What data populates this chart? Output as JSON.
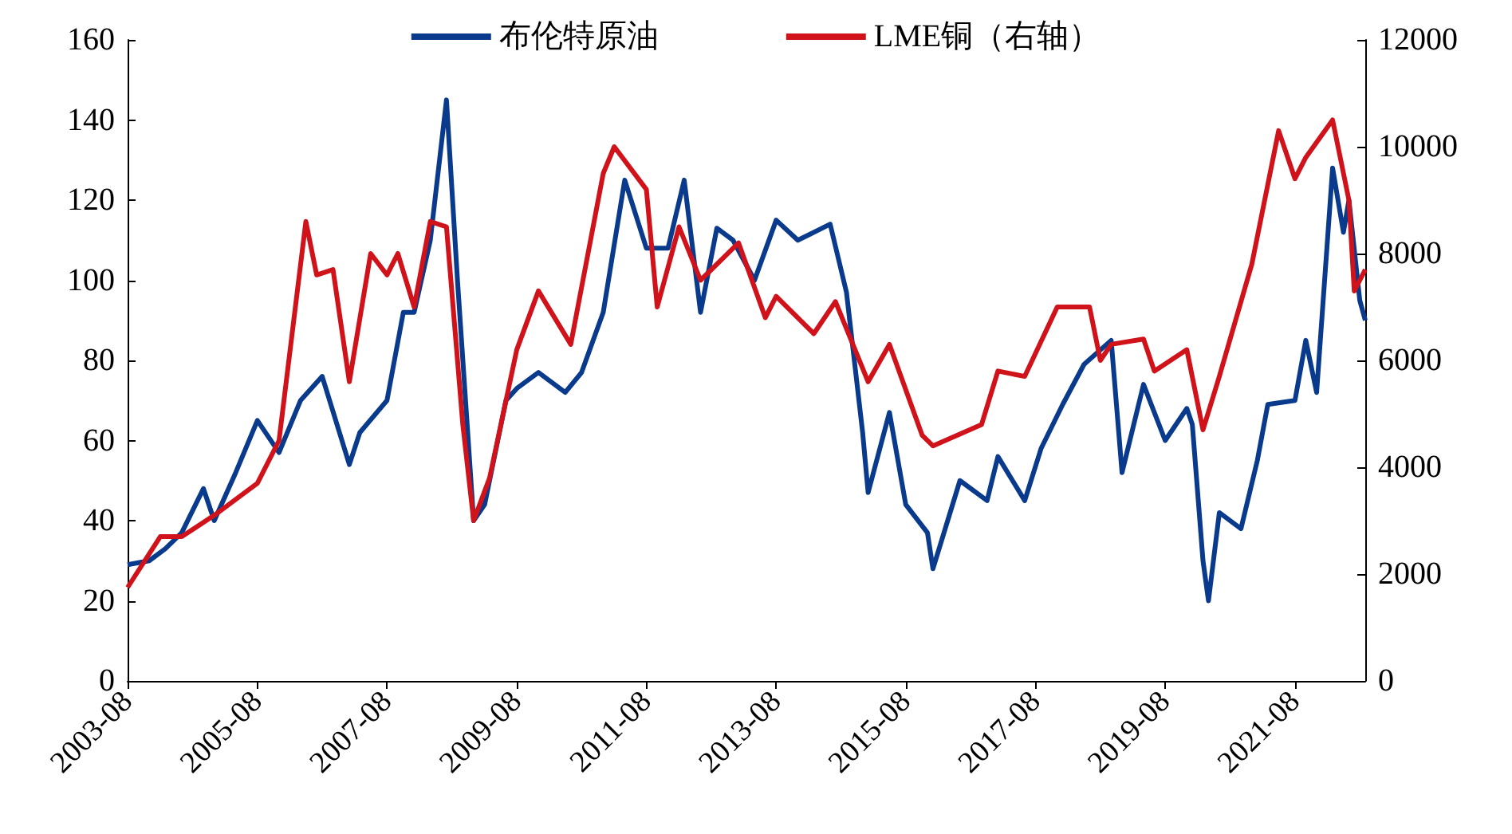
{
  "chart_data": {
    "type": "line",
    "legend": "top",
    "grid": false,
    "marker": "none",
    "line_style": "solid",
    "xlim": [
      "2003-08",
      "2022-09"
    ],
    "xticks": [
      "2003-08",
      "2005-08",
      "2007-08",
      "2009-08",
      "2011-08",
      "2013-08",
      "2015-08",
      "2017-08",
      "2019-08",
      "2021-08"
    ],
    "ylim": [
      0,
      160
    ],
    "yticks": [
      0,
      20,
      40,
      60,
      80,
      100,
      120,
      140,
      160
    ],
    "y2lim": [
      0,
      12000
    ],
    "y2ticks": [
      0,
      2000,
      4000,
      6000,
      8000,
      10000,
      12000
    ],
    "series": [
      {
        "name": "布伦特原油",
        "color": "#0a3a8c",
        "x": [
          "2003-08",
          "2003-12",
          "2004-03",
          "2004-06",
          "2004-10",
          "2004-12",
          "2005-04",
          "2005-08",
          "2005-12",
          "2006-04",
          "2006-08",
          "2007-01",
          "2007-03",
          "2007-08",
          "2007-11",
          "2008-01",
          "2008-04",
          "2008-07",
          "2008-09",
          "2008-12",
          "2009-02",
          "2009-06",
          "2009-08",
          "2009-12",
          "2010-05",
          "2010-08",
          "2010-12",
          "2011-04",
          "2011-08",
          "2011-12",
          "2012-03",
          "2012-06",
          "2012-09",
          "2012-12",
          "2013-04",
          "2013-08",
          "2013-12",
          "2014-06",
          "2014-09",
          "2014-12",
          "2015-01",
          "2015-05",
          "2015-08",
          "2015-12",
          "2016-01",
          "2016-06",
          "2016-11",
          "2017-01",
          "2017-06",
          "2017-09",
          "2018-01",
          "2018-05",
          "2018-10",
          "2018-12",
          "2019-04",
          "2019-08",
          "2019-12",
          "2020-01",
          "2020-03",
          "2020-04",
          "2020-06",
          "2020-10",
          "2021-01",
          "2021-03",
          "2021-08",
          "2021-10",
          "2021-12",
          "2022-03",
          "2022-05",
          "2022-06",
          "2022-08",
          "2022-09"
        ],
        "values": [
          29,
          30,
          33,
          37,
          48,
          40,
          52,
          65,
          57,
          70,
          76,
          54,
          62,
          70,
          92,
          92,
          110,
          145,
          100,
          40,
          44,
          70,
          73,
          77,
          72,
          77,
          92,
          125,
          108,
          108,
          125,
          92,
          113,
          110,
          100,
          115,
          110,
          114,
          97,
          62,
          47,
          67,
          44,
          37,
          28,
          50,
          45,
          56,
          45,
          58,
          69,
          79,
          85,
          52,
          74,
          60,
          68,
          64,
          30,
          20,
          42,
          38,
          55,
          69,
          70,
          85,
          72,
          128,
          112,
          120,
          95,
          90
        ]
      },
      {
        "name": "LME铜（右轴）",
        "color": "#d0121b",
        "axis": "y2",
        "x": [
          "2003-08",
          "2004-02",
          "2004-06",
          "2004-12",
          "2005-08",
          "2005-12",
          "2006-05",
          "2006-07",
          "2006-10",
          "2007-01",
          "2007-05",
          "2007-08",
          "2007-10",
          "2008-01",
          "2008-04",
          "2008-07",
          "2008-10",
          "2008-12",
          "2009-03",
          "2009-08",
          "2009-12",
          "2010-06",
          "2010-12",
          "2011-02",
          "2011-08",
          "2011-10",
          "2012-02",
          "2012-06",
          "2013-01",
          "2013-06",
          "2013-08",
          "2014-03",
          "2014-07",
          "2015-01",
          "2015-05",
          "2015-11",
          "2016-01",
          "2016-10",
          "2017-01",
          "2017-06",
          "2017-12",
          "2018-06",
          "2018-08",
          "2018-10",
          "2019-04",
          "2019-06",
          "2019-12",
          "2020-03",
          "2020-06",
          "2020-12",
          "2021-05",
          "2021-08",
          "2021-10",
          "2022-03",
          "2022-06",
          "2022-07",
          "2022-09"
        ],
        "values": [
          1750,
          2700,
          2700,
          3100,
          3700,
          4500,
          8600,
          7600,
          7700,
          5600,
          8000,
          7600,
          8000,
          7000,
          8600,
          8500,
          4800,
          3000,
          3800,
          6200,
          7300,
          6300,
          9500,
          10000,
          9200,
          7000,
          8500,
          7500,
          8200,
          6800,
          7200,
          6500,
          7100,
          5600,
          6300,
          4600,
          4400,
          4800,
          5800,
          5700,
          7000,
          7000,
          6000,
          6300,
          6400,
          5800,
          6200,
          4700,
          5700,
          7800,
          10300,
          9400,
          9800,
          10500,
          9000,
          7300,
          7700
        ]
      }
    ]
  }
}
